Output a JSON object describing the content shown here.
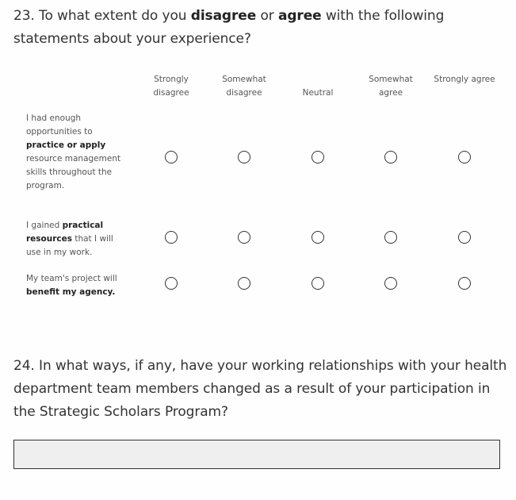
{
  "q23": {
    "number": "23.",
    "parts": [
      {
        "t": " To what extent do you ",
        "b": false
      },
      {
        "t": "disagree",
        "b": true
      },
      {
        "t": " or ",
        "b": false
      },
      {
        "t": "agree",
        "b": true
      },
      {
        "t": " with the following statements about your experience?",
        "b": false
      }
    ]
  },
  "scale": [
    "Strongly disagree",
    "Somewhat disagree",
    "Neutral",
    "Somewhat agree",
    "Strongly agree"
  ],
  "rows": [
    {
      "parts": [
        {
          "t": "I had enough opportunities to ",
          "b": false
        },
        {
          "t": "practice or apply",
          "b": true
        },
        {
          "t": " resource management skills throughout the program.",
          "b": false
        }
      ],
      "selected": null
    },
    {
      "parts": [
        {
          "t": "I gained ",
          "b": false
        },
        {
          "t": "practical resources",
          "b": true
        },
        {
          "t": " that I will use in my work.",
          "b": false
        }
      ],
      "selected": null
    },
    {
      "parts": [
        {
          "t": "My team's project will ",
          "b": false
        },
        {
          "t": "benefit my agency.",
          "b": true
        }
      ],
      "selected": null
    }
  ],
  "q24": {
    "text": "24. In what ways, if any, have your working relationships with your health department team members changed as a result of your participation in the Strategic Scholars Program?",
    "answer": ""
  }
}
